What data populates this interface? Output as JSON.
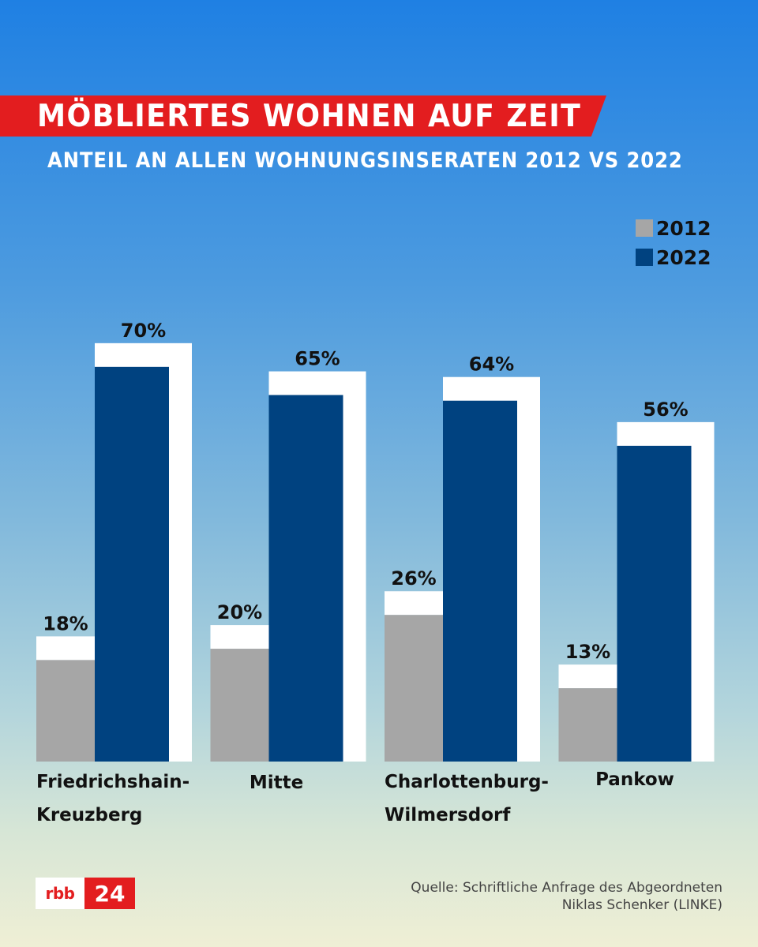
{
  "header": {
    "title": "MÖBLIERTES WOHNEN AUF ZEIT",
    "subtitle": "ANTEIL AN ALLEN WOHNUNGSINSERATEN 2012 VS 2022"
  },
  "chart_data": {
    "type": "bar",
    "title": "MÖBLIERTES WOHNEN AUF ZEIT",
    "subtitle": "ANTEIL AN ALLEN WOHNUNGSINSERATEN 2012 VS 2022",
    "categories": [
      [
        "Friedrichshain-",
        "Kreuzberg"
      ],
      [
        "Mitte"
      ],
      [
        "Charlottenburg-",
        "Wilmersdorf"
      ],
      [
        "Pankow"
      ]
    ],
    "series": [
      {
        "name": "2012",
        "color": "#a6a6a6",
        "values": [
          18,
          20,
          26,
          13
        ],
        "labels": [
          "18%",
          "20%",
          "26%",
          "13%"
        ]
      },
      {
        "name": "2022",
        "color": "#004280",
        "values": [
          70,
          65,
          64,
          56
        ],
        "labels": [
          "70%",
          "65%",
          "64%",
          "56%"
        ]
      }
    ],
    "ylim": [
      0,
      70
    ],
    "legend_position": "top-right",
    "xlabel": "",
    "ylabel": ""
  },
  "colors": {
    "accent_red": "#e31d1f",
    "bar_2012": "#a6a6a6",
    "bar_2022": "#004280",
    "bar_frame": "#ffffff"
  },
  "footer": {
    "logo_left": "rbb",
    "logo_right": "24",
    "source_line1": "Quelle: Schriftliche Anfrage des Abgeordneten",
    "source_line2": "Niklas Schenker (LINKE)"
  }
}
